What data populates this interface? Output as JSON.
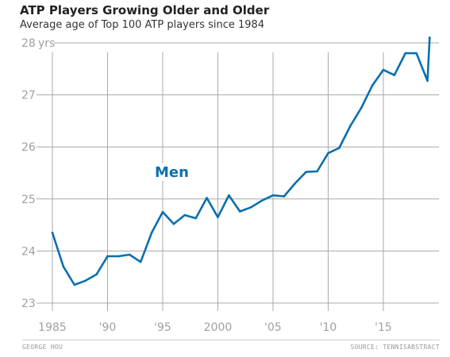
{
  "title": "ATP Players Growing Older and Older",
  "subtitle": "Average age of Top 100 ATP players since 1984",
  "footer": {
    "credit": "GEORGE HOU",
    "source": "SOURCE: TENNISABSTRACT"
  },
  "colors": {
    "line": "#0b6fad",
    "grid": "#a8a8a8",
    "tick": "#a0a0a0"
  },
  "chart_data": {
    "type": "line",
    "ylim": [
      23,
      28
    ],
    "xlim": [
      1984,
      2020
    ],
    "yticks": [
      23,
      24,
      25,
      26,
      27,
      28
    ],
    "ytick_labels": [
      "23",
      "24",
      "25",
      "26",
      "27",
      "28"
    ],
    "yunit_label": "yrs",
    "xticks": [
      1985,
      1990,
      1995,
      2000,
      2005,
      2010,
      2015
    ],
    "xtick_labels": [
      "1985",
      "'90",
      "'95",
      "2000",
      "'05",
      "'10",
      "'15"
    ],
    "annotation": {
      "text": "Men",
      "x": 1995,
      "y": 25.5
    },
    "series": [
      {
        "name": "Men",
        "x": [
          1985,
          1986,
          1987,
          1988,
          1989,
          1990,
          1991,
          1992,
          1993,
          1994,
          1995,
          1996,
          1997,
          1998,
          1999,
          2000,
          2001,
          2002,
          2003,
          2004,
          2005,
          2006,
          2007,
          2008,
          2009,
          2010,
          2011,
          2012,
          2013,
          2014,
          2015,
          2016,
          2017,
          2018,
          2019,
          2019.2
        ],
        "values": [
          24.35,
          23.7,
          23.35,
          23.43,
          23.55,
          23.9,
          23.9,
          23.93,
          23.79,
          24.35,
          24.75,
          24.52,
          24.69,
          24.63,
          25.02,
          24.65,
          25.07,
          24.76,
          24.84,
          24.97,
          25.07,
          25.05,
          25.3,
          25.52,
          25.53,
          25.88,
          25.98,
          26.4,
          26.75,
          27.18,
          27.48,
          27.38,
          27.8,
          27.8,
          27.27,
          28.1
        ]
      }
    ]
  }
}
